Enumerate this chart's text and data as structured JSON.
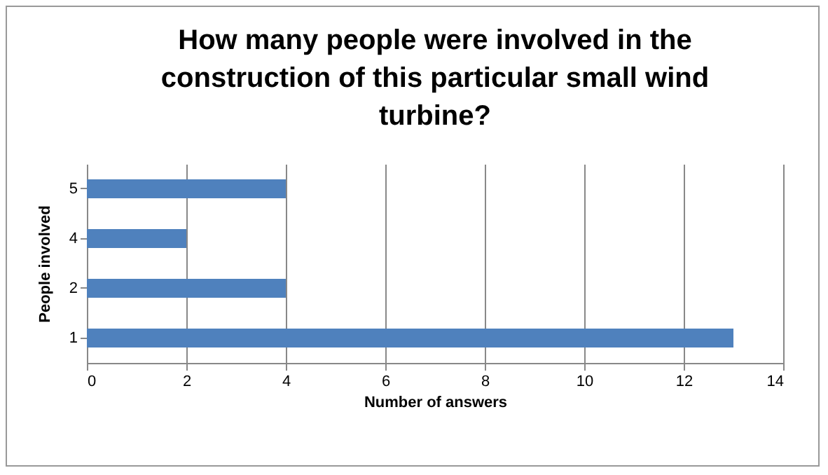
{
  "chart_data": {
    "type": "bar",
    "orientation": "horizontal",
    "title": "How many people were involved in the construction of this particular small wind turbine?",
    "xlabel": "Number of answers",
    "ylabel": "People involved",
    "categories": [
      "5",
      "4",
      "2",
      "1"
    ],
    "values": [
      4,
      2,
      4,
      13
    ],
    "color": "#4f81bd",
    "xlim": [
      0,
      14
    ],
    "xticks": [
      0,
      2,
      4,
      6,
      8,
      10,
      12,
      14
    ],
    "grid": "x"
  }
}
